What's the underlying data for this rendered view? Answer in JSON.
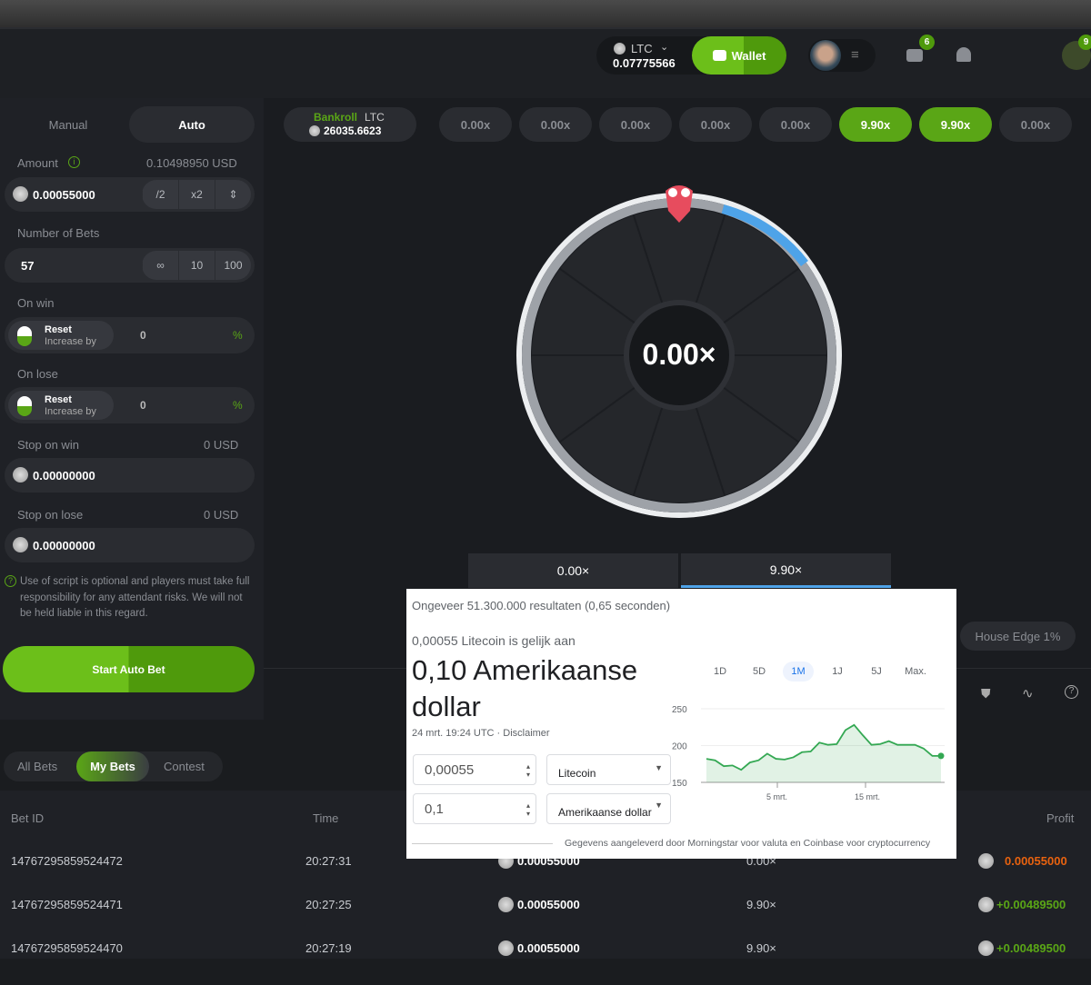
{
  "header": {
    "currency": "LTC",
    "balance": "0.07775566",
    "wallet_label": "Wallet",
    "mail_badge": "6",
    "chat_badge": "9"
  },
  "bet_panel": {
    "tabs": [
      {
        "label": "Manual",
        "active": false
      },
      {
        "label": "Auto",
        "active": true
      }
    ],
    "amount_label": "Amount",
    "amount_usd": "0.10498950 USD",
    "amount_value": "0.00055000",
    "half": "/2",
    "double": "x2",
    "bets_label": "Number of Bets",
    "bets_value": "57",
    "bets_inf": "∞",
    "bets_10": "10",
    "bets_100": "100",
    "on_win_label": "On win",
    "on_win_reset": "Reset",
    "on_win_increase": "Increase by",
    "on_win_value": "0",
    "pct": "%",
    "on_lose_label": "On lose",
    "on_lose_reset": "Reset",
    "on_lose_increase": "Increase by",
    "on_lose_value": "0",
    "stop_win_label": "Stop on win",
    "stop_win_usd": "0 USD",
    "stop_win_value": "0.00000000",
    "stop_lose_label": "Stop on lose",
    "stop_lose_usd": "0 USD",
    "stop_lose_value": "0.00000000",
    "disclaimer": "Use of script is optional and players must take full responsibility for any attendant risks. We will not be held liable in this regard.",
    "start_button": "Start Auto Bet"
  },
  "game": {
    "bankroll_label": "Bankroll",
    "bankroll_currency": "LTC",
    "bankroll_value": "26035.6623",
    "history": [
      {
        "v": "0.00x",
        "win": false
      },
      {
        "v": "0.00x",
        "win": false
      },
      {
        "v": "0.00x",
        "win": false
      },
      {
        "v": "0.00x",
        "win": false
      },
      {
        "v": "0.00x",
        "win": false
      },
      {
        "v": "9.90x",
        "win": true
      },
      {
        "v": "9.90x",
        "win": true
      },
      {
        "v": "0.00x",
        "win": false
      }
    ],
    "wheel_value": "0.00×",
    "outcomes": [
      "0.00×",
      "9.90×"
    ],
    "house_edge": "House Edge 1%",
    "accent": "#5aa616",
    "blue": "#4ea3e8"
  },
  "bets": {
    "tabs": [
      {
        "label": "All Bets"
      },
      {
        "label": "My Bets",
        "active": true
      },
      {
        "label": "Contest"
      }
    ],
    "columns": [
      "Bet ID",
      "Time",
      "Profit"
    ],
    "rows": [
      {
        "id": "14767295859524472",
        "time": "20:27:31",
        "amount": "0.00055000",
        "payout": "0.00×",
        "profit": "0.00055000",
        "win": false
      },
      {
        "id": "14767295859524471",
        "time": "20:27:25",
        "amount": "0.00055000",
        "payout": "9.90×",
        "profit": "+0.00489500",
        "win": true
      },
      {
        "id": "14767295859524470",
        "time": "20:27:19",
        "amount": "0.00055000",
        "payout": "9.90×",
        "profit": "+0.00489500",
        "win": true
      }
    ]
  },
  "overlay": {
    "results": "Ongeveer 51.300.000 resultaten (0,65 seconden)",
    "equals": "0,00055 Litecoin is gelijk aan",
    "big_value": "0,10 Amerikaanse dollar",
    "timestamp": "24 mrt. 19:24 UTC · Disclaimer",
    "from_value": "0,00055",
    "from_currency": "Litecoin",
    "to_value": "0,1",
    "to_currency": "Amerikaanse dollar",
    "ranges": [
      "1D",
      "5D",
      "1M",
      "1J",
      "5J",
      "Max."
    ],
    "active_range": "1M",
    "source": "Gegevens aangeleverd door Morningstar voor valuta en Coinbase voor cryptocurrency"
  },
  "chart_data": {
    "type": "area",
    "ylim": [
      150,
      250
    ],
    "yticks": [
      "250",
      "200",
      "150"
    ],
    "xticks": [
      "5 mrt.",
      "15 mrt."
    ],
    "values": [
      182,
      180,
      172,
      173,
      167,
      177,
      180,
      189,
      182,
      181,
      184,
      191,
      192,
      204,
      201,
      202,
      221,
      228,
      214,
      201,
      202,
      206,
      201,
      201,
      201,
      196,
      186,
      186
    ],
    "color": "#34a853",
    "grid": true
  }
}
